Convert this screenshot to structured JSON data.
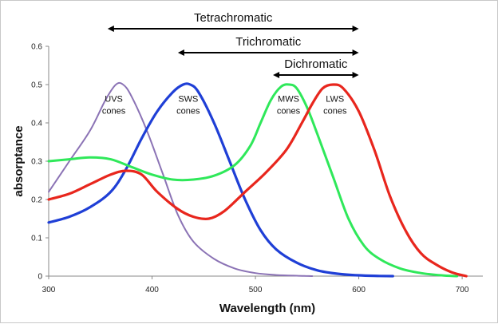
{
  "chart_data": {
    "type": "line",
    "title": "",
    "xlabel": "Wavelength (nm)",
    "ylabel": "absorptance",
    "xlim": [
      300,
      720
    ],
    "ylim": [
      0,
      0.6
    ],
    "x_ticks": [
      "300",
      "400",
      "500",
      "600",
      "700"
    ],
    "y_ticks": [
      "0",
      "0.1",
      "0.2",
      "0.3",
      "0.4",
      "0.5",
      "0.6"
    ],
    "series": [
      {
        "name": "UVS cones",
        "color": "#8b73b5",
        "label": [
          "UVS",
          "cones"
        ],
        "x": [
          300,
          320,
          340,
          355,
          365,
          372,
          380,
          395,
          410,
          425,
          440,
          460,
          480,
          500,
          520,
          540,
          555
        ],
        "y": [
          0.22,
          0.3,
          0.38,
          0.46,
          0.5,
          0.5,
          0.47,
          0.38,
          0.27,
          0.16,
          0.09,
          0.045,
          0.02,
          0.008,
          0.003,
          0.001,
          0.0
        ]
      },
      {
        "name": "SWS cones",
        "color": "#1f3fd6",
        "label": [
          "SWS",
          "cones"
        ],
        "x": [
          300,
          320,
          340,
          360,
          375,
          390,
          405,
          420,
          430,
          437,
          445,
          460,
          475,
          490,
          505,
          520,
          540,
          560,
          580,
          600,
          620,
          633
        ],
        "y": [
          0.14,
          0.155,
          0.18,
          0.22,
          0.28,
          0.36,
          0.43,
          0.48,
          0.5,
          0.5,
          0.48,
          0.4,
          0.3,
          0.2,
          0.12,
          0.07,
          0.035,
          0.015,
          0.006,
          0.002,
          0.0005,
          0.0
        ]
      },
      {
        "name": "MWS cones",
        "color": "#2fe85a",
        "label": [
          "MWS",
          "cones"
        ],
        "x": [
          300,
          320,
          340,
          360,
          380,
          400,
          420,
          440,
          460,
          480,
          495,
          505,
          515,
          525,
          533,
          540,
          550,
          560,
          575,
          590,
          605,
          620,
          640,
          660,
          680,
          695
        ],
        "y": [
          0.3,
          0.305,
          0.31,
          0.305,
          0.285,
          0.265,
          0.252,
          0.252,
          0.262,
          0.29,
          0.34,
          0.4,
          0.46,
          0.495,
          0.5,
          0.49,
          0.44,
          0.37,
          0.26,
          0.15,
          0.08,
          0.045,
          0.02,
          0.008,
          0.002,
          0.0
        ]
      },
      {
        "name": "LWS cones",
        "color": "#e8261d",
        "label": [
          "LWS",
          "cones"
        ],
        "x": [
          300,
          320,
          340,
          360,
          375,
          390,
          405,
          425,
          440,
          455,
          470,
          490,
          510,
          530,
          545,
          555,
          565,
          575,
          585,
          600,
          615,
          630,
          645,
          660,
          675,
          690,
          704
        ],
        "y": [
          0.2,
          0.215,
          0.24,
          0.265,
          0.275,
          0.265,
          0.22,
          0.175,
          0.155,
          0.15,
          0.17,
          0.22,
          0.27,
          0.33,
          0.4,
          0.45,
          0.49,
          0.5,
          0.49,
          0.43,
          0.33,
          0.21,
          0.12,
          0.06,
          0.03,
          0.01,
          0.0
        ]
      }
    ],
    "annotations": [
      {
        "text": "Tetrachromatic",
        "x_start": 357,
        "x_end": 600
      },
      {
        "text": "Trichromatic",
        "x_start": 425,
        "x_end": 600
      },
      {
        "text": "Dichromatic",
        "x_start": 517,
        "x_end": 600
      }
    ]
  }
}
